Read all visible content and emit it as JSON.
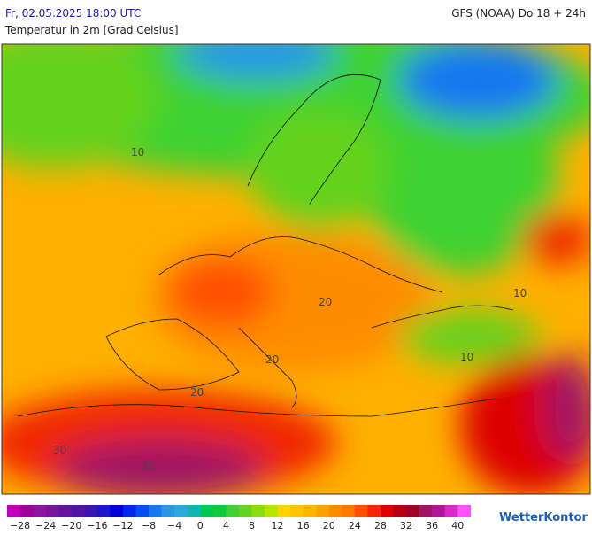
{
  "header": {
    "run": "Fr, 02.05.2025 18:00 UTC",
    "model": "GFS (NOAA) Do 18 + 24h",
    "subtitle": "Temperatur in 2m [Grad Celsius]"
  },
  "map": {
    "contour_labels": [
      "10",
      "10",
      "10",
      "20",
      "20",
      "20",
      "30",
      "30"
    ]
  },
  "legend": {
    "colors": [
      "#be00be",
      "#a000a0",
      "#8c14a0",
      "#7814a0",
      "#6414a0",
      "#5014a8",
      "#3c14b4",
      "#1e14c8",
      "#0000d2",
      "#0028e6",
      "#0050f0",
      "#1478f0",
      "#2896e6",
      "#28aadc",
      "#14b4b4",
      "#00c850",
      "#14c83c",
      "#3cd232",
      "#64d21e",
      "#8cdc14",
      "#b4e600",
      "#ffd200",
      "#ffc300",
      "#ffb400",
      "#ffa000",
      "#ff8c00",
      "#ff7800",
      "#ff5000",
      "#f02800",
      "#dc0000",
      "#b40014",
      "#a00028",
      "#a01464",
      "#b41496",
      "#dc28c8",
      "#ff50ff"
    ],
    "labels": [
      "−28",
      "−24",
      "−20",
      "−16",
      "−12",
      "−8",
      "−4",
      "0",
      "4",
      "8",
      "12",
      "16",
      "20",
      "24",
      "28",
      "32",
      "36",
      "40"
    ]
  },
  "brand": "WetterKontor"
}
